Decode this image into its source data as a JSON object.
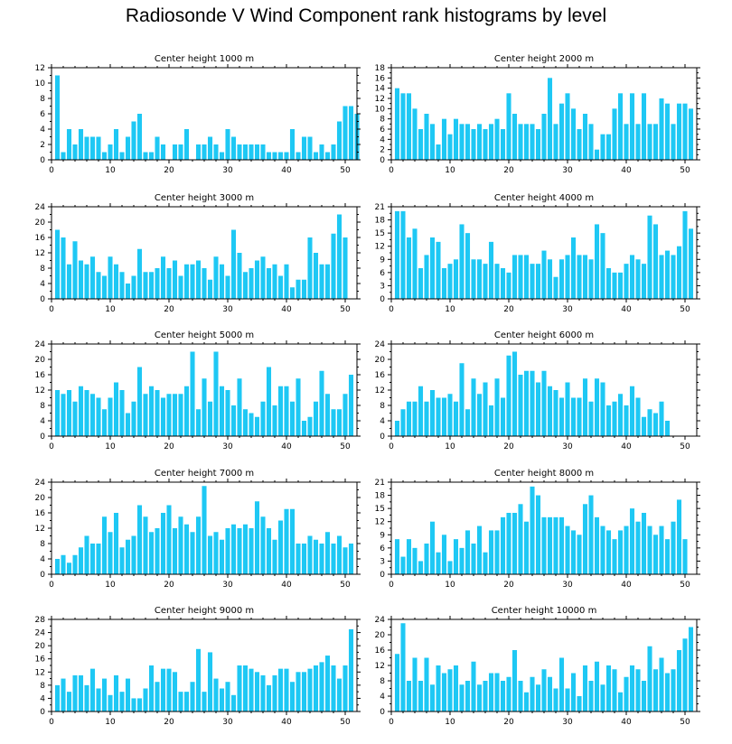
{
  "title": "Radiosonde V Wind Component rank histograms by level",
  "colors": {
    "bar": "#1ec8f4",
    "axis": "#000000"
  },
  "chart_data": [
    {
      "type": "bar",
      "title": "Center height 1000 m",
      "xlim": [
        0,
        52
      ],
      "ylim": [
        0,
        12
      ],
      "xticks": [
        0,
        10,
        20,
        30,
        40,
        50
      ],
      "yticks": [
        0,
        2,
        4,
        6,
        8,
        10,
        12
      ],
      "values": [
        11,
        1,
        4,
        2,
        4,
        3,
        3,
        3,
        1,
        2,
        4,
        1,
        3,
        5,
        6,
        1,
        1,
        3,
        2,
        0,
        2,
        2,
        4,
        0,
        2,
        2,
        3,
        2,
        1,
        4,
        3,
        2,
        2,
        2,
        2,
        2,
        1,
        1,
        1,
        1,
        4,
        1,
        3,
        3,
        1,
        2,
        1,
        2,
        5,
        7,
        7,
        6
      ]
    },
    {
      "type": "bar",
      "title": "Center height 2000 m",
      "xlim": [
        0,
        52
      ],
      "ylim": [
        0,
        18
      ],
      "xticks": [
        0,
        10,
        20,
        30,
        40,
        50
      ],
      "yticks": [
        0,
        2,
        4,
        6,
        8,
        10,
        12,
        14,
        16,
        18
      ],
      "values": [
        14,
        13,
        13,
        10,
        6,
        9,
        7,
        3,
        8,
        5,
        8,
        7,
        7,
        6,
        7,
        6,
        7,
        8,
        6,
        13,
        9,
        7,
        7,
        7,
        6,
        9,
        16,
        7,
        11,
        13,
        10,
        6,
        9,
        7,
        2,
        5,
        5,
        10,
        13,
        7,
        13,
        7,
        13,
        7,
        7,
        12,
        11,
        7,
        11,
        11,
        10
      ]
    },
    {
      "type": "bar",
      "title": "Center height 3000 m",
      "xlim": [
        0,
        52
      ],
      "ylim": [
        0,
        24
      ],
      "xticks": [
        0,
        10,
        20,
        30,
        40,
        50
      ],
      "yticks": [
        0,
        4,
        8,
        12,
        16,
        20,
        24
      ],
      "values": [
        18,
        16,
        9,
        15,
        10,
        9,
        11,
        7,
        6,
        11,
        9,
        7,
        4,
        6,
        13,
        7,
        7,
        8,
        11,
        8,
        10,
        6,
        9,
        9,
        10,
        8,
        5,
        11,
        9,
        6,
        18,
        12,
        7,
        8,
        10,
        11,
        8,
        9,
        6,
        9,
        3,
        5,
        5,
        16,
        12,
        9,
        9,
        17,
        22,
        16
      ]
    },
    {
      "type": "bar",
      "title": "Center height 4000 m",
      "xlim": [
        0,
        52
      ],
      "ylim": [
        0,
        21
      ],
      "xticks": [
        0,
        10,
        20,
        30,
        40,
        50
      ],
      "yticks": [
        0,
        3,
        6,
        9,
        12,
        15,
        18,
        21
      ],
      "values": [
        20,
        20,
        14,
        16,
        7,
        10,
        14,
        13,
        7,
        8,
        9,
        17,
        15,
        9,
        9,
        8,
        13,
        8,
        7,
        6,
        10,
        10,
        10,
        8,
        8,
        11,
        9,
        5,
        9,
        10,
        14,
        10,
        10,
        9,
        17,
        15,
        7,
        6,
        6,
        8,
        10,
        9,
        8,
        19,
        17,
        10,
        11,
        10,
        12,
        20,
        16
      ]
    },
    {
      "type": "bar",
      "title": "Center height 5000 m",
      "xlim": [
        0,
        52
      ],
      "ylim": [
        0,
        24
      ],
      "xticks": [
        0,
        10,
        20,
        30,
        40,
        50
      ],
      "yticks": [
        0,
        4,
        8,
        12,
        16,
        20,
        24
      ],
      "values": [
        12,
        11,
        12,
        9,
        13,
        12,
        11,
        10,
        7,
        10,
        14,
        12,
        6,
        9,
        18,
        11,
        13,
        12,
        10,
        11,
        11,
        11,
        13,
        22,
        7,
        15,
        9,
        22,
        13,
        12,
        8,
        15,
        7,
        6,
        5,
        9,
        18,
        8,
        13,
        13,
        9,
        15,
        4,
        5,
        9,
        17,
        11,
        7,
        7,
        11,
        16
      ]
    },
    {
      "type": "bar",
      "title": "Center height 6000 m",
      "xlim": [
        0,
        52
      ],
      "ylim": [
        0,
        24
      ],
      "xticks": [
        0,
        10,
        20,
        30,
        40,
        50
      ],
      "yticks": [
        0,
        4,
        8,
        12,
        16,
        20,
        24
      ],
      "values": [
        4,
        7,
        9,
        9,
        13,
        9,
        12,
        10,
        10,
        11,
        9,
        19,
        7,
        15,
        11,
        14,
        8,
        15,
        10,
        21,
        22,
        16,
        17,
        17,
        14,
        17,
        13,
        12,
        10,
        14,
        10,
        10,
        15,
        9,
        15,
        14,
        8,
        9,
        11,
        8,
        13,
        10,
        5,
        7,
        6,
        9,
        4
      ]
    },
    {
      "type": "bar",
      "title": "Center height 7000 m",
      "xlim": [
        0,
        52
      ],
      "ylim": [
        0,
        24
      ],
      "xticks": [
        0,
        10,
        20,
        30,
        40,
        50
      ],
      "yticks": [
        0,
        4,
        8,
        12,
        16,
        20,
        24
      ],
      "values": [
        4,
        5,
        3,
        5,
        7,
        10,
        8,
        8,
        15,
        11,
        16,
        7,
        9,
        10,
        18,
        15,
        11,
        12,
        16,
        18,
        12,
        15,
        13,
        11,
        15,
        23,
        10,
        11,
        9,
        12,
        13,
        12,
        13,
        12,
        19,
        15,
        12,
        9,
        14,
        17,
        17,
        8,
        8,
        10,
        9,
        8,
        11,
        8,
        10,
        7,
        8
      ]
    },
    {
      "type": "bar",
      "title": "Center height 8000 m",
      "xlim": [
        0,
        52
      ],
      "ylim": [
        0,
        21
      ],
      "xticks": [
        0,
        10,
        20,
        30,
        40,
        50
      ],
      "yticks": [
        0,
        3,
        6,
        9,
        12,
        15,
        18,
        21
      ],
      "values": [
        8,
        4,
        8,
        6,
        3,
        7,
        12,
        5,
        9,
        3,
        8,
        6,
        10,
        7,
        11,
        5,
        10,
        10,
        13,
        14,
        14,
        16,
        12,
        20,
        18,
        13,
        13,
        13,
        13,
        11,
        10,
        9,
        16,
        18,
        13,
        11,
        10,
        8,
        10,
        11,
        15,
        12,
        14,
        11,
        9,
        11,
        8,
        12,
        17,
        8
      ]
    },
    {
      "type": "bar",
      "title": "Center height 9000 m",
      "xlim": [
        0,
        52
      ],
      "ylim": [
        0,
        28
      ],
      "xticks": [
        0,
        10,
        20,
        30,
        40,
        50
      ],
      "yticks": [
        0,
        4,
        8,
        12,
        16,
        20,
        24,
        28
      ],
      "values": [
        8,
        10,
        6,
        11,
        11,
        8,
        13,
        7,
        10,
        5,
        11,
        6,
        10,
        4,
        4,
        7,
        14,
        9,
        13,
        13,
        12,
        6,
        6,
        9,
        19,
        6,
        18,
        10,
        7,
        9,
        5,
        14,
        14,
        13,
        12,
        11,
        8,
        11,
        13,
        13,
        9,
        12,
        12,
        13,
        14,
        15,
        17,
        14,
        10,
        14,
        25
      ]
    },
    {
      "type": "bar",
      "title": "Center height 10000 m",
      "xlim": [
        0,
        52
      ],
      "ylim": [
        0,
        24
      ],
      "xticks": [
        0,
        10,
        20,
        30,
        40,
        50
      ],
      "yticks": [
        0,
        4,
        8,
        12,
        16,
        20,
        24
      ],
      "values": [
        15,
        23,
        8,
        14,
        8,
        14,
        7,
        12,
        10,
        11,
        12,
        7,
        8,
        13,
        7,
        8,
        10,
        10,
        8,
        9,
        16,
        8,
        5,
        9,
        7,
        11,
        9,
        6,
        14,
        6,
        10,
        4,
        12,
        8,
        13,
        7,
        12,
        11,
        5,
        9,
        12,
        11,
        8,
        17,
        11,
        14,
        10,
        11,
        16,
        19,
        22
      ]
    }
  ]
}
